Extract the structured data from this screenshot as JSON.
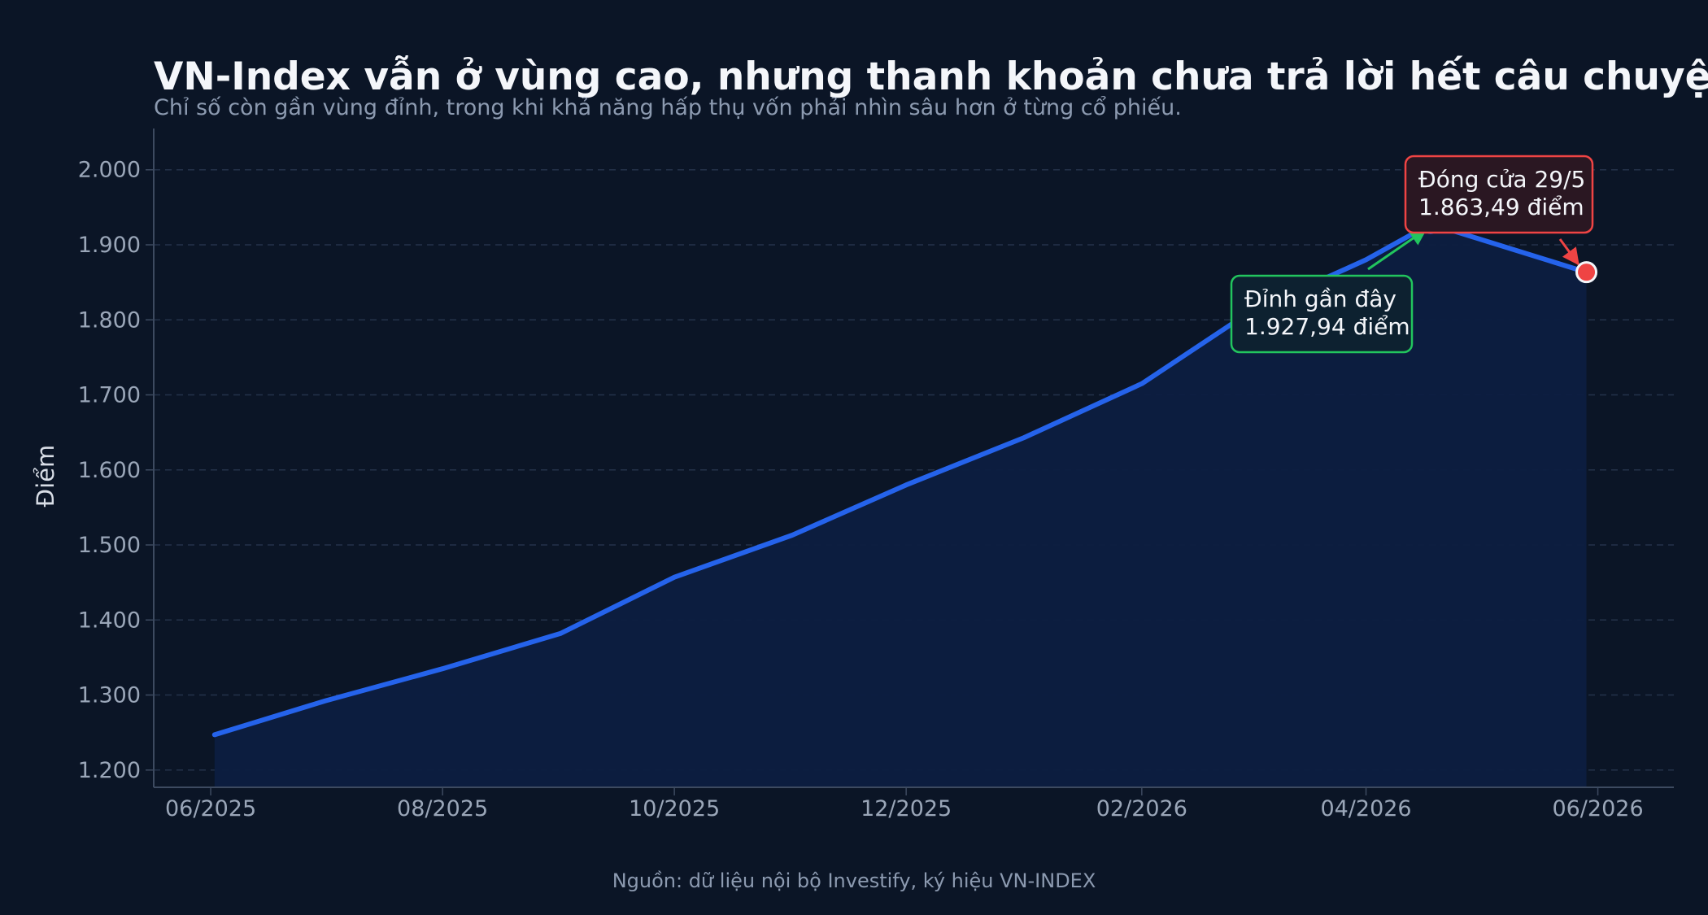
{
  "chart_data": {
    "type": "area",
    "title": "VN-Index vẫn ở vùng cao, nhưng thanh khoản chưa trả lời hết câu chuyện ETF",
    "subtitle": "Chỉ số còn gần vùng đỉnh, trong khi khả năng hấp thụ vốn phải nhìn sâu hơn ở từng cổ phiếu.",
    "xlabel": "",
    "ylabel": "Điểm",
    "source": "Nguồn: dữ liệu nội bộ Investify, ký hiệu VN-INDEX",
    "x_ticks": [
      "06/2025",
      "08/2025",
      "10/2025",
      "12/2025",
      "02/2026",
      "04/2026",
      "06/2026"
    ],
    "y_ticks": [
      "1.200",
      "1.300",
      "1.400",
      "1.500",
      "1.600",
      "1.700",
      "1.800",
      "1.900",
      "2.000"
    ],
    "ylim": [
      1177,
      2055
    ],
    "xlim": [
      "2025-05-17",
      "2026-06-21"
    ],
    "grid": "horizontal dashed",
    "series": [
      {
        "color": "#2563eb",
        "x": [
          "2025-06-02",
          "2025-07-01",
          "2025-08-01",
          "2025-09-01",
          "2025-10-01",
          "2025-11-01",
          "2025-12-01",
          "2026-01-01",
          "2026-02-01",
          "2026-03-01",
          "2026-04-01",
          "2026-04-18",
          "2026-05-29"
        ],
        "y": [
          1247,
          1292,
          1335,
          1382,
          1457,
          1513,
          1580,
          1643,
          1715,
          1809,
          1880,
          1927.94,
          1863.49
        ]
      }
    ],
    "annotations": [
      {
        "name": "peak",
        "line1": "Đỉnh gần đây",
        "line2": "1.927,94 điểm",
        "x": "2026-04-18",
        "y": 1927.94,
        "color": "#22c55e"
      },
      {
        "name": "close",
        "line1": "Đóng cửa 29/5",
        "line2": "1.863,49 điểm",
        "x": "2026-05-29",
        "y": 1863.49,
        "color": "#ef4444"
      }
    ],
    "colors": {
      "background": "#0b1526",
      "line": "#2563eb",
      "area": "#0d1d40",
      "peak": "#22c55e",
      "close": "#ef4444"
    }
  }
}
